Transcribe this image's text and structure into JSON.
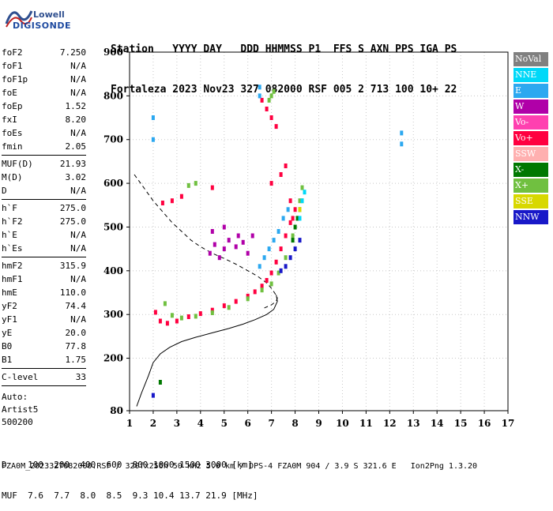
{
  "logo": {
    "line1": "Lowell",
    "line2": "DIGISONDE"
  },
  "header": {
    "row1": [
      "Station",
      "YYYY DAY",
      "DDD HHMMSS",
      "P1",
      "FFS S",
      "AXN PPS IGA PS"
    ],
    "row2": [
      "Fortaleza",
      "2023 Nov23",
      "327 082000",
      "RSF",
      "005 2",
      "713 100 10+ 22"
    ]
  },
  "params": {
    "group1": [
      {
        "label": "foF2",
        "value": "7.250"
      },
      {
        "label": "foF1",
        "value": "N/A"
      },
      {
        "label": "foF1p",
        "value": "N/A"
      },
      {
        "label": "foE",
        "value": "N/A"
      },
      {
        "label": "foEp",
        "value": "1.52"
      },
      {
        "label": "fxI",
        "value": "8.20"
      },
      {
        "label": "foEs",
        "value": "N/A"
      },
      {
        "label": "fmin",
        "value": "2.05"
      }
    ],
    "group2": [
      {
        "label": "MUF(D)",
        "value": "21.93"
      },
      {
        "label": "M(D)",
        "value": "3.02"
      },
      {
        "label": "D",
        "value": "N/A"
      }
    ],
    "group3": [
      {
        "label": "h`F",
        "value": "275.0"
      },
      {
        "label": "h`F2",
        "value": "275.0"
      },
      {
        "label": "h`E",
        "value": "N/A"
      },
      {
        "label": "h`Es",
        "value": "N/A"
      }
    ],
    "group4": [
      {
        "label": "hmF2",
        "value": "315.9"
      },
      {
        "label": "hmF1",
        "value": "N/A"
      },
      {
        "label": "hmE",
        "value": "110.0"
      },
      {
        "label": "yF2",
        "value": "74.4"
      },
      {
        "label": "yF1",
        "value": "N/A"
      },
      {
        "label": "yE",
        "value": "20.0"
      },
      {
        "label": "B0",
        "value": "77.8"
      },
      {
        "label": "B1",
        "value": "1.75"
      }
    ],
    "group5": [
      {
        "label": "C-level",
        "value": "33"
      }
    ],
    "auto": [
      "Auto:",
      "Artist5",
      "500200"
    ]
  },
  "legend": [
    {
      "label": "NoVal",
      "color": "#808080"
    },
    {
      "label": "NNE",
      "color": "#00d8f8"
    },
    {
      "label": "E",
      "color": "#2ca8f0"
    },
    {
      "label": "W",
      "color": "#b000a8"
    },
    {
      "label": "Vo-",
      "color": "#ff40b0"
    },
    {
      "label": "Vo+",
      "color": "#ff0040"
    },
    {
      "label": "SSW",
      "color": "#ffb0b0"
    },
    {
      "label": "X-",
      "color": "#007800"
    },
    {
      "label": "X+",
      "color": "#70c040"
    },
    {
      "label": "SSE",
      "color": "#d8d800"
    },
    {
      "label": "NNW",
      "color": "#1818c8"
    }
  ],
  "footer": {
    "d_row": "D    100  200  400  600  800 1000 1500 3000 [km]",
    "muf_row": "MUF  7.6  7.7  8.0  8.5  9.3 10.4 13.7 21.9 [MHz]",
    "file_line": "FZA0M_2023327082000.RSF / 320fx256h 50 kHz 5.0 km / DPS-4 FZA0M 904 / 3.9 S 321.6 E   Ion2Png 1.3.20"
  },
  "chart_data": {
    "type": "scatter",
    "title": "",
    "xlabel": "",
    "ylabel": "",
    "xlim": [
      1,
      17
    ],
    "ylim": [
      80,
      900
    ],
    "xticks": [
      1,
      2,
      3,
      4,
      5,
      6,
      7,
      8,
      9,
      10,
      11,
      12,
      13,
      14,
      15,
      16,
      17
    ],
    "yticks": [
      80,
      200,
      300,
      400,
      500,
      600,
      700,
      800,
      900
    ],
    "grid": true,
    "profile_dashed": {
      "name": "",
      "x": [
        1.2,
        1.6,
        2.0,
        2.4,
        2.8,
        3.2,
        3.6,
        4.0,
        4.5,
        5.0,
        5.5,
        6.0,
        6.4,
        6.8,
        7.0,
        7.15,
        7.25,
        7.2,
        7.0,
        6.7
      ],
      "y": [
        620,
        590,
        560,
        535,
        510,
        490,
        470,
        455,
        440,
        428,
        415,
        400,
        388,
        372,
        360,
        348,
        338,
        330,
        322,
        315
      ]
    },
    "profile_solid": {
      "name": "",
      "x": [
        1.3,
        1.5,
        1.8,
        2.0,
        2.3,
        2.7,
        3.2,
        3.8,
        4.5,
        5.2,
        5.8,
        6.3,
        6.8,
        7.1,
        7.25,
        7.2
      ],
      "y": [
        90,
        120,
        160,
        190,
        210,
        225,
        238,
        248,
        258,
        268,
        278,
        288,
        300,
        312,
        330,
        345
      ]
    },
    "series": [
      {
        "name": "Vo+",
        "color": "#ff0040",
        "x": [
          2.1,
          2.3,
          2.6,
          3.0,
          3.5,
          4.0,
          4.5,
          5.0,
          5.5,
          6.0,
          6.3,
          6.6,
          6.8,
          7.0,
          7.2,
          7.4,
          7.6,
          7.8,
          8.0,
          6.6,
          6.8,
          7.0,
          7.2,
          2.4,
          2.8,
          3.2,
          4.5,
          7.0,
          7.4,
          7.6,
          7.8,
          7.9
        ],
        "y": [
          305,
          285,
          280,
          285,
          295,
          302,
          310,
          320,
          330,
          342,
          352,
          365,
          378,
          395,
          420,
          450,
          480,
          510,
          540,
          790,
          770,
          750,
          730,
          555,
          560,
          570,
          590,
          600,
          620,
          640,
          560,
          520
        ]
      },
      {
        "name": "X+",
        "color": "#70c040",
        "x": [
          2.5,
          2.8,
          3.2,
          3.8,
          4.5,
          5.2,
          6.0,
          6.6,
          7.0,
          7.3,
          7.6,
          7.9,
          8.1,
          8.2,
          8.3,
          6.9,
          7.0,
          7.1,
          3.5,
          3.8
        ],
        "y": [
          325,
          298,
          292,
          296,
          304,
          316,
          336,
          356,
          370,
          395,
          430,
          480,
          520,
          560,
          590,
          790,
          800,
          810,
          595,
          600
        ]
      },
      {
        "name": "E",
        "color": "#2ca8f0",
        "x": [
          6.5,
          6.7,
          6.9,
          7.1,
          7.3,
          7.5,
          7.7,
          2.0,
          2.0,
          12.5,
          12.5,
          6.5,
          6.5
        ],
        "y": [
          410,
          430,
          450,
          470,
          490,
          520,
          540,
          750,
          700,
          715,
          690,
          820,
          800
        ]
      },
      {
        "name": "W",
        "color": "#b000a8",
        "x": [
          4.4,
          4.6,
          4.8,
          5.0,
          5.2,
          5.5,
          5.8,
          6.0,
          6.2,
          4.5,
          5.0,
          5.6
        ],
        "y": [
          440,
          460,
          430,
          450,
          470,
          455,
          465,
          440,
          480,
          490,
          500,
          480
        ]
      },
      {
        "name": "NNW",
        "color": "#1818c8",
        "x": [
          7.6,
          7.8,
          8.0,
          8.2,
          7.4,
          2.0
        ],
        "y": [
          410,
          430,
          450,
          470,
          400,
          115
        ]
      },
      {
        "name": "X-",
        "color": "#007800",
        "x": [
          8.0,
          8.1,
          8.2,
          7.9,
          2.3
        ],
        "y": [
          500,
          520,
          540,
          470,
          145
        ]
      },
      {
        "name": "SSE",
        "color": "#d8d800",
        "x": [
          8.2,
          8.3
        ],
        "y": [
          540,
          560
        ]
      },
      {
        "name": "NNE",
        "color": "#00d8f8",
        "x": [
          8.3,
          8.4,
          8.2
        ],
        "y": [
          560,
          580,
          520
        ]
      }
    ]
  }
}
